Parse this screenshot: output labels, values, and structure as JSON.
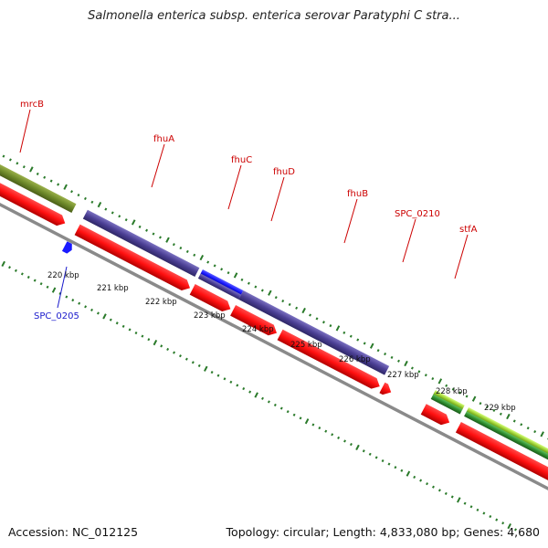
{
  "title": "Salmonella enterica subsp. enterica serovar Paratyphi C stra...",
  "footer": {
    "accession_label": "Accession:",
    "accession": "NC_012125",
    "topology_label": "Topology:",
    "topology": "circular",
    "length_label": "Length:",
    "length": "4,833,080 bp",
    "genes_label": "Genes:",
    "genes": "4,680"
  },
  "colors": {
    "backbone": "#8a8a8a",
    "tick": "#2a7a2a",
    "forward_gene": "#ff1a1a",
    "label_red": "#cc0000",
    "label_blue": "#1a1acc",
    "olive": "#6e8a2a",
    "purple": "#4b3f94",
    "blue": "#1a1aff",
    "lime": "#9acd32",
    "green": "#2e8b2e"
  },
  "gene_labels": [
    {
      "id": "mrcB",
      "text": "mrcB",
      "color": "#cc0000"
    },
    {
      "id": "fhuA",
      "text": "fhuA",
      "color": "#cc0000"
    },
    {
      "id": "fhuC",
      "text": "fhuC",
      "color": "#cc0000"
    },
    {
      "id": "fhuD",
      "text": "fhuD",
      "color": "#cc0000"
    },
    {
      "id": "fhuB",
      "text": "fhuB",
      "color": "#cc0000"
    },
    {
      "id": "SPC_0210",
      "text": "SPC_0210",
      "color": "#cc0000"
    },
    {
      "id": "stfA",
      "text": "stfA",
      "color": "#cc0000"
    },
    {
      "id": "SPC_0205",
      "text": "SPC_0205",
      "color": "#1a1acc"
    }
  ],
  "kbp_labels": [
    "220 kbp",
    "221 kbp",
    "222 kbp",
    "223 kbp",
    "224 kbp",
    "225 kbp",
    "226 kbp",
    "227 kbp",
    "228 kbp",
    "229 kbp"
  ]
}
